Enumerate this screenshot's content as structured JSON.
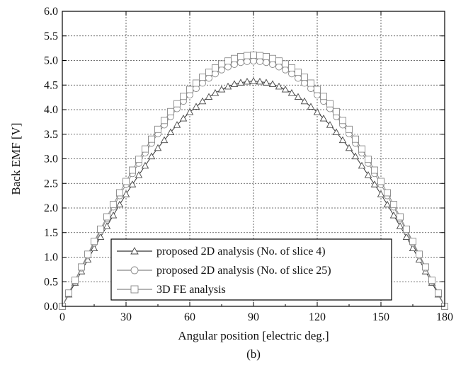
{
  "chart_data": {
    "type": "line",
    "xlabel": "Angular position [electric deg.]",
    "ylabel": "Back EMF [V]",
    "caption": "(b)",
    "xlim": [
      0,
      180
    ],
    "ylim": [
      0.0,
      6.0
    ],
    "xticks": [
      "0",
      "30",
      "60",
      "90",
      "120",
      "150",
      "180"
    ],
    "yticks": [
      "0.0",
      "0.5",
      "1.0",
      "1.5",
      "2.0",
      "2.5",
      "3.0",
      "3.5",
      "4.0",
      "4.5",
      "5.0",
      "5.5",
      "6.0"
    ],
    "grid": true,
    "legend_position": "bottom-left",
    "x": [
      0,
      3,
      6,
      9,
      12,
      15,
      18,
      21,
      24,
      27,
      30,
      33,
      36,
      39,
      42,
      45,
      48,
      51,
      54,
      57,
      60,
      63,
      66,
      69,
      72,
      75,
      78,
      81,
      84,
      87,
      90,
      93,
      96,
      99,
      102,
      105,
      108,
      111,
      114,
      117,
      120,
      123,
      126,
      129,
      132,
      135,
      138,
      141,
      144,
      147,
      150,
      153,
      156,
      159,
      162,
      165,
      168,
      171,
      174,
      177,
      180
    ],
    "series": [
      {
        "name": "proposed 2D analysis (No. of slice 4)",
        "marker": "triangle",
        "values": [
          0.0,
          0.24,
          0.48,
          0.71,
          0.95,
          1.18,
          1.41,
          1.63,
          1.85,
          2.07,
          2.28,
          2.48,
          2.67,
          2.86,
          3.05,
          3.22,
          3.38,
          3.54,
          3.69,
          3.82,
          3.95,
          4.06,
          4.17,
          4.26,
          4.34,
          4.41,
          4.47,
          4.52,
          4.55,
          4.57,
          4.58,
          4.57,
          4.55,
          4.52,
          4.47,
          4.41,
          4.34,
          4.26,
          4.17,
          4.06,
          3.95,
          3.82,
          3.69,
          3.54,
          3.38,
          3.22,
          3.05,
          2.86,
          2.67,
          2.48,
          2.28,
          2.07,
          1.85,
          1.63,
          1.41,
          1.18,
          0.95,
          0.71,
          0.48,
          0.24,
          0.0
        ]
      },
      {
        "name": "proposed 2D analysis (No. of slice 25)",
        "marker": "circle",
        "values": [
          0.0,
          0.26,
          0.52,
          0.78,
          1.03,
          1.29,
          1.53,
          1.78,
          2.02,
          2.25,
          2.48,
          2.7,
          2.91,
          3.12,
          3.32,
          3.51,
          3.69,
          3.86,
          4.02,
          4.17,
          4.3,
          4.43,
          4.54,
          4.64,
          4.73,
          4.81,
          4.87,
          4.92,
          4.96,
          4.98,
          4.99,
          4.98,
          4.96,
          4.92,
          4.87,
          4.81,
          4.73,
          4.64,
          4.54,
          4.43,
          4.3,
          4.17,
          4.02,
          3.86,
          3.69,
          3.51,
          3.32,
          3.12,
          2.91,
          2.7,
          2.48,
          2.25,
          2.02,
          1.78,
          1.53,
          1.29,
          1.03,
          0.78,
          0.52,
          0.26,
          0.0
        ]
      },
      {
        "name": "3D FE analysis",
        "marker": "square",
        "values": [
          0.0,
          0.27,
          0.53,
          0.8,
          1.06,
          1.32,
          1.57,
          1.82,
          2.07,
          2.31,
          2.54,
          2.77,
          2.99,
          3.2,
          3.4,
          3.6,
          3.78,
          3.96,
          4.12,
          4.27,
          4.41,
          4.54,
          4.66,
          4.76,
          4.85,
          4.93,
          4.99,
          5.04,
          5.08,
          5.1,
          5.11,
          5.1,
          5.08,
          5.04,
          4.99,
          4.93,
          4.85,
          4.76,
          4.66,
          4.54,
          4.41,
          4.27,
          4.12,
          3.96,
          3.78,
          3.6,
          3.4,
          3.2,
          2.99,
          2.77,
          2.54,
          2.31,
          2.07,
          1.82,
          1.57,
          1.32,
          1.06,
          0.8,
          0.53,
          0.27,
          0.0
        ]
      }
    ]
  }
}
